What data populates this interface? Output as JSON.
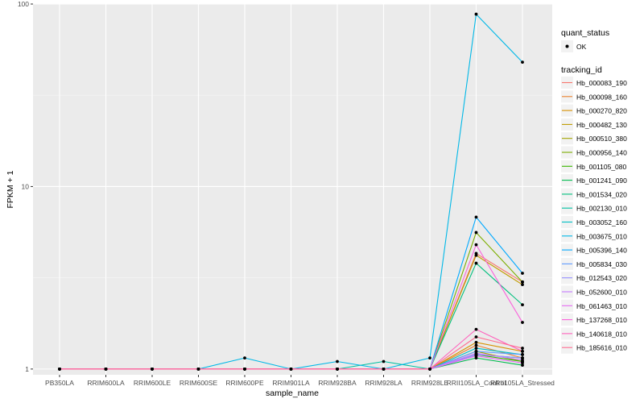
{
  "chart_data": {
    "type": "line",
    "title": "",
    "xlabel": "sample_name",
    "ylabel": "FPKM + 1",
    "y_scale": "log10",
    "ylim": [
      0.93,
      100
    ],
    "y_ticks": [
      1,
      10,
      100
    ],
    "y_tick_labels": [
      "1",
      "10",
      "100"
    ],
    "grid": true,
    "legend_position": "right",
    "categories": [
      "PB350LA",
      "RRIM600LA",
      "RRIM600LE",
      "RRIM600SE",
      "RRIM600PE",
      "RRIM901LA",
      "RRIM928BA",
      "RRIM928LA",
      "RRIM928LE",
      "RRII105LA_Control",
      "RRII105LA_Stressed"
    ],
    "quant_status_legend": {
      "title": "quant_status",
      "items": [
        "OK"
      ]
    },
    "series_legend_title": "tracking_id",
    "series": [
      {
        "name": "Hb_000083_190",
        "color": "#F8766D",
        "values": [
          1,
          1,
          1,
          1,
          1,
          1,
          1,
          1,
          1,
          4.3,
          3.0
        ]
      },
      {
        "name": "Hb_000098_160",
        "color": "#EA8331",
        "values": [
          1,
          1,
          1,
          1,
          1,
          1,
          1,
          1,
          1,
          1.35,
          1.15
        ]
      },
      {
        "name": "Hb_000270_820",
        "color": "#D89000",
        "values": [
          1,
          1,
          1,
          1,
          1,
          1,
          1,
          1,
          1,
          1.4,
          1.25
        ]
      },
      {
        "name": "Hb_000482_130",
        "color": "#C09B00",
        "values": [
          1,
          1,
          1,
          1,
          1,
          1,
          1,
          1,
          1,
          4.2,
          2.9
        ]
      },
      {
        "name": "Hb_000510_380",
        "color": "#A3A500",
        "values": [
          1,
          1,
          1,
          1,
          1,
          1,
          1,
          1,
          1,
          1.25,
          1.1
        ]
      },
      {
        "name": "Hb_000956_140",
        "color": "#7CAE00",
        "values": [
          1,
          1,
          1,
          1,
          1,
          1,
          1,
          1,
          1,
          5.6,
          3.0
        ]
      },
      {
        "name": "Hb_001105_080",
        "color": "#39B600",
        "values": [
          1,
          1,
          1,
          1,
          1,
          1,
          1,
          1,
          1,
          1.2,
          1.1
        ]
      },
      {
        "name": "Hb_001241_090",
        "color": "#00BB4E",
        "values": [
          1,
          1,
          1,
          1,
          1,
          1,
          1,
          1,
          1,
          1.15,
          1.05
        ]
      },
      {
        "name": "Hb_001534_020",
        "color": "#00BF7D",
        "values": [
          1,
          1,
          1,
          1,
          1,
          1,
          1,
          1,
          1,
          3.8,
          2.25
        ]
      },
      {
        "name": "Hb_002130_010",
        "color": "#00C1A3",
        "values": [
          1,
          1,
          1,
          1,
          1,
          1,
          1,
          1.1,
          1,
          1.2,
          1.15
        ]
      },
      {
        "name": "Hb_003052_160",
        "color": "#00BFC4",
        "values": [
          1,
          1,
          1,
          1,
          1,
          1,
          1,
          1,
          1,
          1.3,
          1.2
        ]
      },
      {
        "name": "Hb_003675_010",
        "color": "#00B8E7",
        "values": [
          1,
          1,
          1,
          1,
          1.15,
          1,
          1.1,
          1,
          1.15,
          88.0,
          48.0
        ]
      },
      {
        "name": "Hb_005396_140",
        "color": "#00A9FF",
        "values": [
          1,
          1,
          1,
          1,
          1,
          1,
          1,
          1,
          1,
          6.8,
          3.35
        ]
      },
      {
        "name": "Hb_005834_030",
        "color": "#619CFF",
        "values": [
          1,
          1,
          1,
          1,
          1,
          1,
          1,
          1,
          1,
          1.25,
          1.2
        ]
      },
      {
        "name": "Hb_012543_020",
        "color": "#9590FF",
        "values": [
          1,
          1,
          1,
          1,
          1,
          1,
          1,
          1,
          1,
          1.2,
          1.15
        ]
      },
      {
        "name": "Hb_052600_010",
        "color": "#C77CFF",
        "values": [
          1,
          1,
          1,
          1,
          1,
          1,
          1,
          1,
          1,
          1.22,
          1.12
        ]
      },
      {
        "name": "Hb_061463_010",
        "color": "#E76BF3",
        "values": [
          1,
          1,
          1,
          1,
          1,
          1,
          1,
          1,
          1,
          1.18,
          1.08
        ]
      },
      {
        "name": "Hb_137268_010",
        "color": "#FA62DB",
        "values": [
          1,
          1,
          1,
          1,
          1,
          1,
          1,
          1,
          1,
          4.8,
          1.8
        ]
      },
      {
        "name": "Hb_140618_010",
        "color": "#FF62BC",
        "values": [
          1,
          1,
          1,
          1,
          1,
          1,
          1,
          1,
          1,
          1.65,
          1.25
        ]
      },
      {
        "name": "Hb_185616_010",
        "color": "#FF6C91",
        "values": [
          1,
          1,
          1,
          1,
          1,
          1,
          1,
          1,
          1,
          1.5,
          1.3
        ]
      }
    ]
  }
}
